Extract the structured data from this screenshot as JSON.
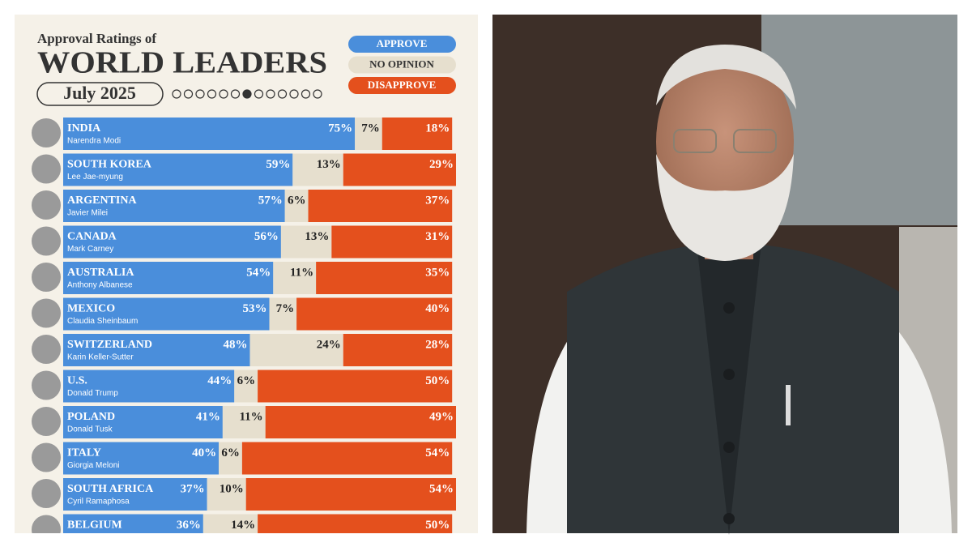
{
  "chart_data": {
    "type": "bar",
    "orientation": "horizontal",
    "stacked": true,
    "supertitle": "Approval Ratings of",
    "title": "WORLD LEADERS",
    "subtitle": "July 2025",
    "categories": [
      "INDIA",
      "SOUTH KOREA",
      "ARGENTINA",
      "CANADA",
      "AUSTRALIA",
      "MEXICO",
      "SWITZERLAND",
      "U.S.",
      "POLAND",
      "ITALY",
      "SOUTH AFRICA",
      "BELGIUM"
    ],
    "leaders": [
      "Narendra Modi",
      "Lee Jae-myung",
      "Javier Milei",
      "Mark Carney",
      "Anthony Albanese",
      "Claudia Sheinbaum",
      "Karin Keller-Sutter",
      "Donald Trump",
      "Donald Tusk",
      "Giorgia Meloni",
      "Cyril Ramaphosa",
      null
    ],
    "series": [
      {
        "name": "APPROVE",
        "color": "#4a8edb",
        "values": [
          75,
          59,
          57,
          56,
          54,
          53,
          48,
          44,
          41,
          40,
          37,
          36
        ],
        "value_labels": [
          "75%",
          "59%",
          "57%",
          "56%",
          "54%",
          "53%",
          "48%",
          "44%",
          "41%",
          "40%",
          "37%",
          "36%"
        ]
      },
      {
        "name": "NO OPINION",
        "color": "#e6dfce",
        "values": [
          7,
          13,
          6,
          13,
          11,
          7,
          24,
          6,
          11,
          6,
          10,
          14
        ],
        "value_labels": [
          "7%",
          "13%",
          "6%",
          "13%",
          "11%",
          "7%",
          "24%",
          "6%",
          "11%",
          "6%",
          "10%",
          "14%"
        ]
      },
      {
        "name": "DISAPPROVE",
        "color": "#e4501d",
        "values": [
          18,
          29,
          37,
          31,
          35,
          40,
          28,
          50,
          49,
          54,
          54,
          50
        ],
        "value_labels": [
          "18%",
          "29%",
          "37%",
          "31%",
          "35%",
          "40%",
          "28%",
          "50%",
          "49%",
          "54%",
          "54%",
          "50%"
        ]
      }
    ]
  }
}
